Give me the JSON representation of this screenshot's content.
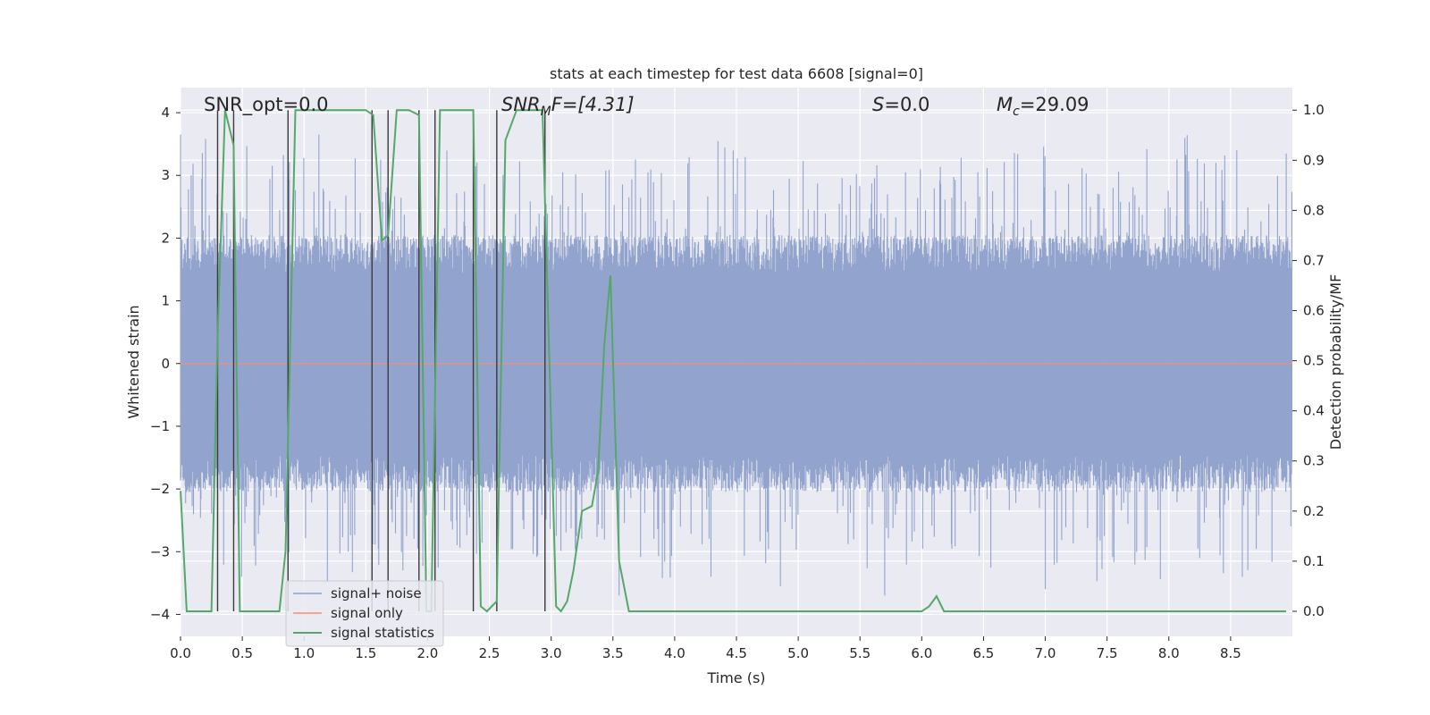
{
  "chart_data": {
    "type": "line",
    "title": "stats at each timestep for test data 6608 [signal=0]",
    "xlabel": "Time (s)",
    "ylabel_left": "Whitened strain",
    "ylabel_right": "Detection probability/MF",
    "xlim": [
      0,
      9.0
    ],
    "ylim_left": [
      -4.35,
      4.4
    ],
    "ylim_right": [
      -0.05,
      1.045
    ],
    "x_ticks": [
      "0.0",
      "0.5",
      "1.0",
      "1.5",
      "2.0",
      "2.5",
      "3.0",
      "3.5",
      "4.0",
      "4.5",
      "5.0",
      "5.5",
      "6.0",
      "6.5",
      "7.0",
      "7.5",
      "8.0",
      "8.5"
    ],
    "y_ticks_left": [
      "−4",
      "−3",
      "−2",
      "−1",
      "0",
      "1",
      "2",
      "3",
      "4"
    ],
    "y_ticks_right": [
      "0.0",
      "0.1",
      "0.2",
      "0.3",
      "0.4",
      "0.5",
      "0.6",
      "0.7",
      "0.8",
      "0.9",
      "1.0"
    ],
    "annotations": {
      "snr_opt": "SNR_opt=0.0",
      "snr_mf_main": "SNR",
      "snr_mf_sub": "M",
      "snr_mf_rest": "F=[4.31]",
      "s_italic": "S",
      "s_rest": "=0.0",
      "mc_main": "M",
      "mc_sub": "c",
      "mc_rest": "=29.09"
    },
    "grid": true,
    "legend_placement": "lower-left",
    "series": [
      {
        "name": "signal+ noise",
        "axis": "left",
        "color": "#8da0cb",
        "kind": "dense noisy trace, ~8000 samples, typical amplitude about ±1.6 with spikes up to ±3.8",
        "notable_peaks": [
          [
            0.0,
            3.65
          ],
          [
            1.12,
            3.65
          ],
          [
            3.55,
            -3.7
          ],
          [
            5.7,
            -3.7
          ],
          [
            7.0,
            -3.6
          ],
          [
            8.55,
            3.4
          ],
          [
            8.95,
            3.35
          ]
        ]
      },
      {
        "name": "signal only",
        "axis": "left",
        "color": "#fc8d62",
        "x": [
          0.0,
          9.0
        ],
        "y": [
          0.0,
          0.0
        ]
      },
      {
        "name": "signal statistics",
        "axis": "right",
        "color": "#55a868",
        "x": [
          0.0,
          0.05,
          0.25,
          0.3,
          0.36,
          0.43,
          0.48,
          0.8,
          0.85,
          0.93,
          1.5,
          1.56,
          1.63,
          1.68,
          1.75,
          1.85,
          1.93,
          1.99,
          2.03,
          2.1,
          2.14,
          2.37,
          2.43,
          2.48,
          2.56,
          2.63,
          2.72,
          2.93,
          3.04,
          3.08,
          3.13,
          3.18,
          3.25,
          3.33,
          3.38,
          3.43,
          3.48,
          3.55,
          3.63,
          6.0,
          6.06,
          6.12,
          6.18,
          6.25,
          8.95
        ],
        "y": [
          0.24,
          0.0,
          0.0,
          0.55,
          1.0,
          0.93,
          0.0,
          0.0,
          0.12,
          1.0,
          1.0,
          0.99,
          0.74,
          0.75,
          1.0,
          1.0,
          0.99,
          0.0,
          0.0,
          1.0,
          1.0,
          1.0,
          0.01,
          0.0,
          0.02,
          0.94,
          1.0,
          1.0,
          0.01,
          0.0,
          0.02,
          0.08,
          0.2,
          0.21,
          0.28,
          0.53,
          0.67,
          0.1,
          0.0,
          0.0,
          0.01,
          0.03,
          0.0,
          0.0,
          0.0
        ]
      }
    ],
    "vertical_markers": {
      "color": "#3a3a3a",
      "x": [
        0.3,
        0.43,
        0.87,
        1.55,
        1.68,
        1.93,
        2.06,
        2.37,
        2.56,
        2.95
      ]
    }
  }
}
